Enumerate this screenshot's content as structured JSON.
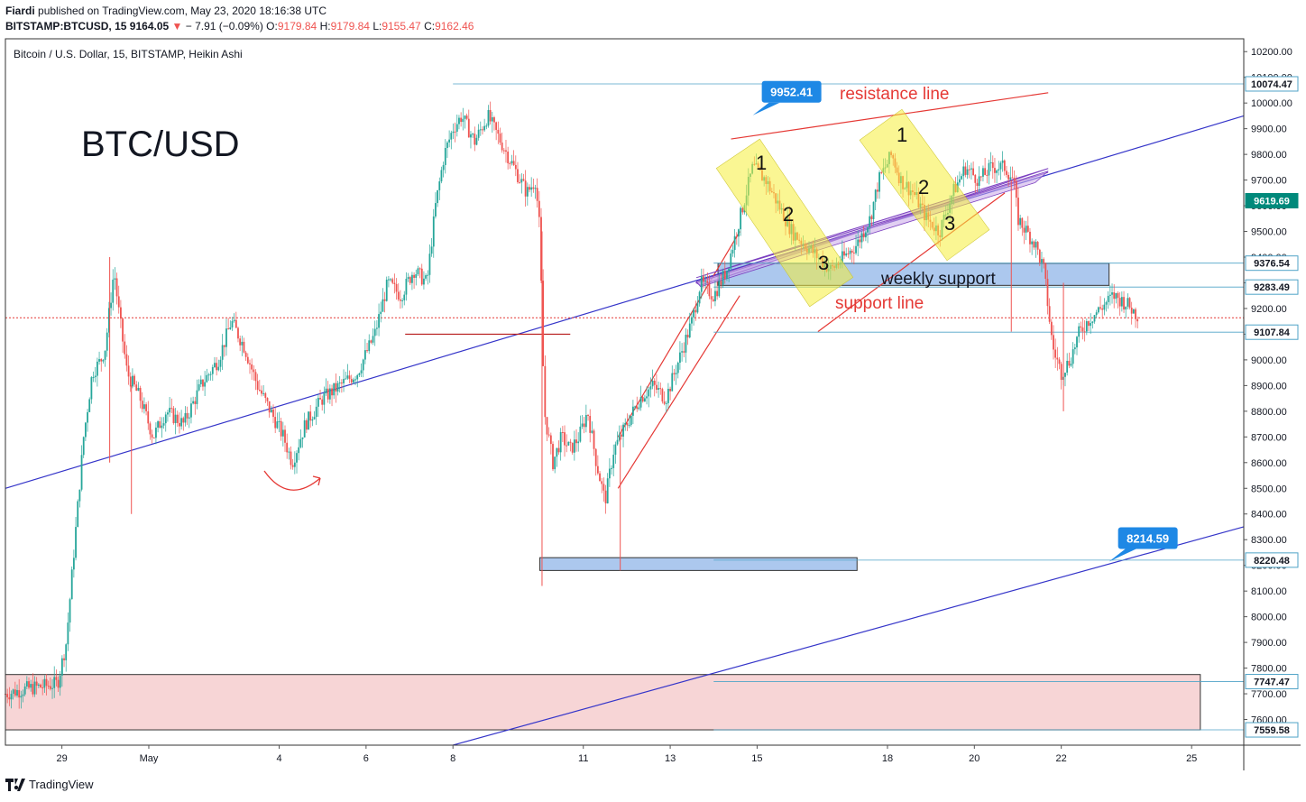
{
  "header": {
    "line1_user": "Fiardi",
    "line1_text": "published on TradingView.com, May 23, 2020 18:16:38 UTC",
    "symbol": "BITSTAMP:BTCUSD, 15",
    "price": "9164.05",
    "change": "− 7.91 (−0.09%)",
    "o_label": "O:",
    "o": "9179.84",
    "h_label": "H:",
    "h": "9179.84",
    "l_label": "L:",
    "l": "9155.47",
    "c_label": "C:",
    "c": "9162.46"
  },
  "footer": {
    "brand": "TradingView"
  },
  "chart_data": {
    "type": "line",
    "chart_style": "Heikin Ashi candles",
    "legend_title": "Bitcoin / U.S. Dollar, 15, BITSTAMP, Heikin Ashi",
    "big_label": "BTC/USD",
    "ylim": [
      7500,
      10250
    ],
    "y_ticks": [
      7600,
      7700,
      7800,
      7900,
      8000,
      8100,
      8200,
      8300,
      8400,
      8500,
      8600,
      8700,
      8800,
      8900,
      9000,
      9100,
      9200,
      9300,
      9400,
      9500,
      9600,
      9700,
      9800,
      9900,
      10000,
      10100,
      10200
    ],
    "y_tick_labels": [
      "7600.00",
      "7700.00",
      "7800.00",
      "7900.00",
      "8000.00",
      "8100.00",
      "8200.00",
      "8300.00",
      "8400.00",
      "8500.00",
      "8600.00",
      "8700.00",
      "8800.00",
      "8900.00",
      "9000.00",
      "9100.00",
      "9200.00",
      "9300.00",
      "9400.00",
      "9500.00",
      "9600.00",
      "9700.00",
      "9800.00",
      "9900.00",
      "10000.00",
      "10100.00",
      "10200.00"
    ],
    "x_day_range": [
      27.7,
      56.2
    ],
    "x_ticks": [
      {
        "label": "29",
        "day": 29
      },
      {
        "label": "May",
        "day": 31
      },
      {
        "label": "4",
        "day": 34
      },
      {
        "label": "6",
        "day": 36
      },
      {
        "label": "8",
        "day": 38
      },
      {
        "label": "11",
        "day": 41
      },
      {
        "label": "13",
        "day": 43
      },
      {
        "label": "15",
        "day": 45
      },
      {
        "label": "18",
        "day": 48
      },
      {
        "label": "20",
        "day": 50
      },
      {
        "label": "22",
        "day": 52
      },
      {
        "label": "25",
        "day": 55
      }
    ],
    "price_path": [
      [
        27.7,
        7700
      ],
      [
        28.2,
        7720
      ],
      [
        28.6,
        7730
      ],
      [
        28.9,
        7740
      ],
      [
        29.1,
        7900
      ],
      [
        29.3,
        8300
      ],
      [
        29.5,
        8700
      ],
      [
        29.7,
        8950
      ],
      [
        29.9,
        9000
      ],
      [
        30.0,
        9050
      ],
      [
        30.2,
        9350
      ],
      [
        30.3,
        9200
      ],
      [
        30.5,
        8950
      ],
      [
        30.8,
        8850
      ],
      [
        31.1,
        8700
      ],
      [
        31.4,
        8800
      ],
      [
        31.8,
        8750
      ],
      [
        32.2,
        8900
      ],
      [
        32.6,
        9000
      ],
      [
        32.9,
        9150
      ],
      [
        33.2,
        9050
      ],
      [
        33.5,
        8900
      ],
      [
        33.8,
        8800
      ],
      [
        34.1,
        8700
      ],
      [
        34.3,
        8600
      ],
      [
        34.6,
        8750
      ],
      [
        35.0,
        8850
      ],
      [
        35.4,
        8900
      ],
      [
        35.8,
        8950
      ],
      [
        36.2,
        9100
      ],
      [
        36.5,
        9300
      ],
      [
        36.8,
        9250
      ],
      [
        37.1,
        9350
      ],
      [
        37.4,
        9300
      ],
      [
        37.6,
        9600
      ],
      [
        37.8,
        9800
      ],
      [
        38.0,
        9900
      ],
      [
        38.2,
        9950
      ],
      [
        38.5,
        9850
      ],
      [
        38.8,
        9950
      ],
      [
        39.1,
        9850
      ],
      [
        39.4,
        9750
      ],
      [
        39.7,
        9650
      ],
      [
        39.9,
        9700
      ],
      [
        40.0,
        9500
      ],
      [
        40.1,
        8800
      ],
      [
        40.3,
        8600
      ],
      [
        40.5,
        8700
      ],
      [
        40.7,
        8650
      ],
      [
        40.9,
        8700
      ],
      [
        41.1,
        8800
      ],
      [
        41.3,
        8600
      ],
      [
        41.5,
        8450
      ],
      [
        41.7,
        8650
      ],
      [
        42.0,
        8750
      ],
      [
        42.3,
        8850
      ],
      [
        42.6,
        8900
      ],
      [
        42.9,
        8850
      ],
      [
        43.2,
        9000
      ],
      [
        43.5,
        9150
      ],
      [
        43.7,
        9300
      ],
      [
        44.0,
        9250
      ],
      [
        44.3,
        9350
      ],
      [
        44.6,
        9550
      ],
      [
        44.9,
        9750
      ],
      [
        45.2,
        9700
      ],
      [
        45.5,
        9600
      ],
      [
        45.8,
        9500
      ],
      [
        46.1,
        9450
      ],
      [
        46.4,
        9400
      ],
      [
        46.7,
        9350
      ],
      [
        47.0,
        9400
      ],
      [
        47.3,
        9450
      ],
      [
        47.6,
        9550
      ],
      [
        47.8,
        9700
      ],
      [
        48.1,
        9800
      ],
      [
        48.3,
        9700
      ],
      [
        48.6,
        9650
      ],
      [
        48.9,
        9550
      ],
      [
        49.2,
        9500
      ],
      [
        49.5,
        9650
      ],
      [
        49.8,
        9750
      ],
      [
        50.1,
        9700
      ],
      [
        50.4,
        9750
      ],
      [
        50.7,
        9750
      ],
      [
        50.9,
        9700
      ],
      [
        51.0,
        9550
      ],
      [
        51.2,
        9500
      ],
      [
        51.4,
        9450
      ],
      [
        51.6,
        9350
      ],
      [
        51.8,
        9050
      ],
      [
        52.0,
        8950
      ],
      [
        52.2,
        9000
      ],
      [
        52.4,
        9100
      ],
      [
        52.6,
        9150
      ],
      [
        52.9,
        9200
      ],
      [
        53.2,
        9250
      ],
      [
        53.5,
        9220
      ],
      [
        53.8,
        9164
      ]
    ],
    "price_labels": [
      {
        "text": "10074.47",
        "value": 10074.47,
        "kind": "line"
      },
      {
        "text": "9619.69",
        "value": 9619.69,
        "kind": "current"
      },
      {
        "text": "9376.54",
        "value": 9376.54,
        "kind": "line"
      },
      {
        "text": "9283.49",
        "value": 9283.49,
        "kind": "line"
      },
      {
        "text": "9107.84",
        "value": 9107.84,
        "kind": "line"
      },
      {
        "text": "8220.48",
        "value": 8220.48,
        "kind": "line"
      },
      {
        "text": "7747.47",
        "value": 7747.47,
        "kind": "line"
      },
      {
        "text": "7559.58",
        "value": 7559.58,
        "kind": "line"
      }
    ],
    "callouts": [
      {
        "text": "9952.41",
        "day": 44.9,
        "value": 9952.41
      },
      {
        "text": "8214.59",
        "day": 53.1,
        "value": 8214.59
      }
    ],
    "annotations": {
      "resistance": "resistance line",
      "weekly_support": "weekly support",
      "support": "support line",
      "wave_labels": [
        "1",
        "2",
        "3",
        "1",
        "2",
        "3"
      ]
    },
    "zones": [
      {
        "name": "weekly-support-zone",
        "day_from": 44.1,
        "day_to": 53.1,
        "low": 9290,
        "high": 9376,
        "color": "#90b6e8"
      },
      {
        "name": "lower-support-zone",
        "day_from": 40.0,
        "day_to": 47.3,
        "low": 8180,
        "high": 8230,
        "color": "#90b6e8"
      },
      {
        "name": "bottom-demand-zone",
        "day_from": 27.7,
        "day_to": 55.2,
        "low": 7559.58,
        "high": 7775,
        "color": "#f4c7c8"
      }
    ],
    "trendlines": [
      {
        "name": "upper-trendline",
        "color": "#3535c9",
        "from": [
          27.7,
          8500
        ],
        "to": [
          56.2,
          9950
        ]
      },
      {
        "name": "lower-trendline",
        "color": "#3535c9",
        "from": [
          38.0,
          7500
        ],
        "to": [
          56.2,
          8350
        ]
      },
      {
        "name": "resistance-line",
        "color": "#e53935",
        "from": [
          44.4,
          9860
        ],
        "to": [
          51.7,
          10040
        ]
      },
      {
        "name": "support-line",
        "color": "#e53935",
        "from": [
          46.4,
          9110
        ],
        "to": [
          50.7,
          9650
        ]
      },
      {
        "name": "rising-channel-lower",
        "color": "#e53935",
        "from": [
          41.8,
          8500
        ],
        "to": [
          44.6,
          9250
        ]
      },
      {
        "name": "rising-channel-upper",
        "color": "#e53935",
        "from": [
          41.8,
          8700
        ],
        "to": [
          44.6,
          9500
        ]
      },
      {
        "name": "horizontal-line",
        "color": "#b71c1c",
        "from": [
          36.9,
          9100
        ],
        "to": [
          40.7,
          9100
        ]
      }
    ],
    "dashed_price_line": 9164.05,
    "colors": {
      "up": "#26a69a",
      "down": "#ef5350",
      "label_bg": "#1e88e5",
      "current_bg": "#00897b"
    }
  }
}
